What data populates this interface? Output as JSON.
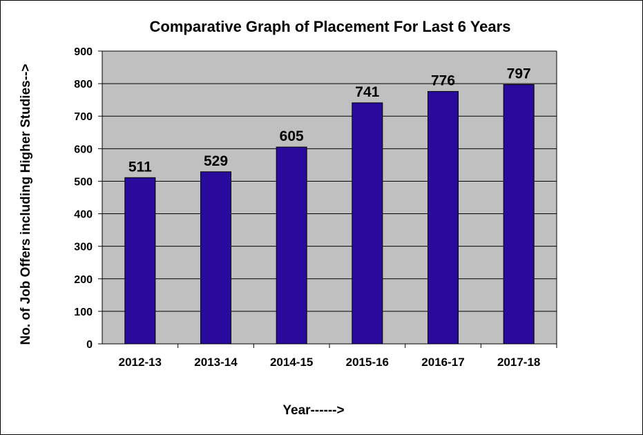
{
  "chart_data": {
    "type": "bar",
    "title": "Comparative Graph of Placement For Last 6 Years",
    "xlabel": "Year------>",
    "ylabel": "No. of Job Offers including Higher Studies-->",
    "categories": [
      "2012-13",
      "2013-14",
      "2014-15",
      "2015-16",
      "2016-17",
      "2017-18"
    ],
    "series": [
      {
        "values": [
          511,
          529,
          605,
          741,
          776,
          797
        ]
      }
    ],
    "data_labels": [
      "511",
      "529",
      "605",
      "741",
      "776",
      "797"
    ],
    "ylim": [
      0,
      900
    ],
    "yticks": [
      "0",
      "100",
      "200",
      "300",
      "400",
      "500",
      "600",
      "700",
      "800",
      "900"
    ],
    "grid": true,
    "legend": "none",
    "colors": {
      "bar": "#2a0a9c",
      "plot_background": "#c0c0c0",
      "gridline": "#000000"
    }
  }
}
